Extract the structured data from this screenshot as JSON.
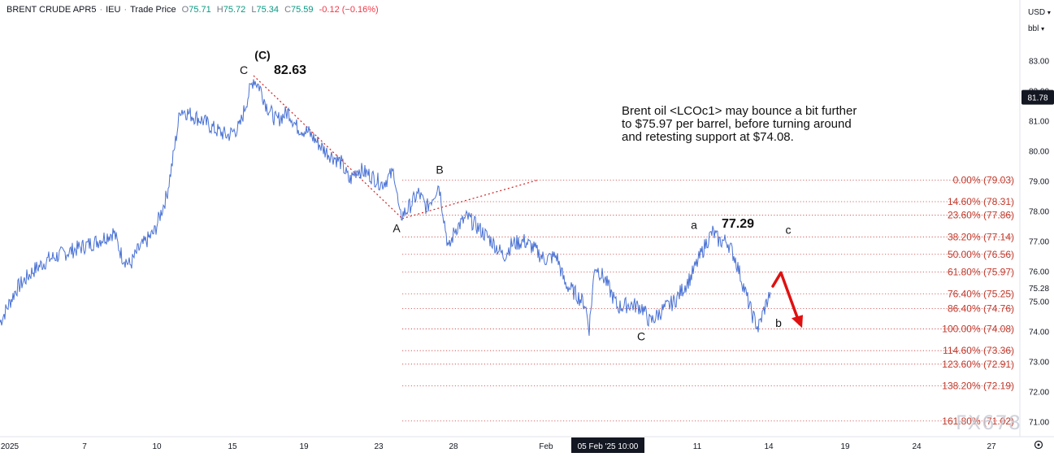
{
  "header": {
    "symbol": "BRENT CRUDE APR5",
    "exchange": "IEU",
    "price_type": "Trade Price",
    "open_label": "O",
    "open": "75.71",
    "high_label": "H",
    "high": "75.72",
    "low_label": "L",
    "low": "75.34",
    "close_label": "C",
    "close": "75.59",
    "change": "-0.12 (−0.16%)"
  },
  "currency": "USD",
  "unit": "bbl",
  "watermark": "FX678",
  "colors": {
    "price_line": "#4a72d4",
    "fib_line": "#c83c3c",
    "fib_text": "#c0392b",
    "arrow": "#e01010",
    "last_price_bg": "#131722",
    "time_highlight_bg": "#131722"
  },
  "chart_data": {
    "type": "line",
    "title": "",
    "xlabel": "",
    "ylabel": "",
    "ylim": [
      70.8,
      84.0
    ],
    "y_ticks": [
      "83.00",
      "82.00",
      "81.00",
      "80.00",
      "79.00",
      "78.00",
      "77.00",
      "76.00",
      "75.00",
      "74.00",
      "73.00",
      "72.00",
      "71.00"
    ],
    "x_ticks": [
      "2025",
      "7",
      "10",
      "15",
      "19",
      "23",
      "28",
      "Feb",
      "05 Feb '25  10:00",
      "11",
      "14",
      "19",
      "24",
      "27"
    ],
    "last_price": "81.78",
    "current_price": "75.28",
    "series": [
      {
        "points": [
          [
            0,
            74.3
          ],
          [
            20,
            75.4
          ],
          [
            40,
            76.0
          ],
          [
            60,
            76.4
          ],
          [
            80,
            76.6
          ],
          [
            100,
            76.8
          ],
          [
            120,
            77.0
          ],
          [
            140,
            77.3
          ],
          [
            150,
            76.5
          ],
          [
            160,
            76.2
          ],
          [
            170,
            76.7
          ],
          [
            190,
            77.3
          ],
          [
            205,
            78.5
          ],
          [
            212,
            79.6
          ],
          [
            222,
            81.4
          ],
          [
            235,
            81.2
          ],
          [
            250,
            81.0
          ],
          [
            265,
            80.7
          ],
          [
            280,
            80.5
          ],
          [
            295,
            80.8
          ],
          [
            305,
            81.8
          ],
          [
            312,
            82.4
          ],
          [
            320,
            82.1
          ],
          [
            328,
            81.5
          ],
          [
            340,
            81.0
          ],
          [
            355,
            81.3
          ],
          [
            365,
            80.8
          ],
          [
            380,
            80.6
          ],
          [
            400,
            80.0
          ],
          [
            420,
            79.6
          ],
          [
            430,
            79.0
          ],
          [
            440,
            79.4
          ],
          [
            455,
            79.2
          ],
          [
            470,
            78.9
          ],
          [
            485,
            79.3
          ],
          [
            492,
            77.8
          ],
          [
            500,
            78.0
          ],
          [
            515,
            78.6
          ],
          [
            525,
            78.1
          ],
          [
            535,
            78.6
          ],
          [
            540,
            78.9
          ],
          [
            545,
            78.0
          ],
          [
            552,
            76.7
          ],
          [
            560,
            77.4
          ],
          [
            575,
            77.8
          ],
          [
            590,
            77.4
          ],
          [
            605,
            77.0
          ],
          [
            620,
            76.5
          ],
          [
            630,
            76.9
          ],
          [
            645,
            77.0
          ],
          [
            655,
            76.8
          ],
          [
            670,
            76.4
          ],
          [
            685,
            76.5
          ],
          [
            695,
            75.6
          ],
          [
            710,
            75.2
          ],
          [
            720,
            74.9
          ],
          [
            725,
            74.1
          ],
          [
            732,
            76.2
          ],
          [
            745,
            75.7
          ],
          [
            760,
            74.8
          ],
          [
            775,
            74.9
          ],
          [
            790,
            74.8
          ],
          [
            800,
            74.3
          ],
          [
            815,
            74.7
          ],
          [
            830,
            75.0
          ],
          [
            840,
            75.4
          ],
          [
            850,
            75.8
          ],
          [
            860,
            76.4
          ],
          [
            870,
            77.0
          ],
          [
            877,
            77.3
          ],
          [
            885,
            77.0
          ],
          [
            895,
            77.0
          ],
          [
            905,
            76.4
          ],
          [
            915,
            75.5
          ],
          [
            925,
            74.6
          ],
          [
            933,
            74.1
          ],
          [
            940,
            74.7
          ],
          [
            948,
            75.3
          ]
        ]
      }
    ],
    "fib_levels": [
      {
        "pct": "0.00%",
        "value": 79.03,
        "label": "0.00% (79.03)"
      },
      {
        "pct": "14.60%",
        "value": 78.31,
        "label": "14.60% (78.31)"
      },
      {
        "pct": "23.60%",
        "value": 77.86,
        "label": "23.60% (77.86)"
      },
      {
        "pct": "38.20%",
        "value": 77.14,
        "label": "38.20% (77.14)"
      },
      {
        "pct": "50.00%",
        "value": 76.56,
        "label": "50.00% (76.56)"
      },
      {
        "pct": "61.80%",
        "value": 75.97,
        "label": "61.80% (75.97)"
      },
      {
        "pct": "76.40%",
        "value": 75.25,
        "label": "76.40% (75.25)"
      },
      {
        "pct": "86.40%",
        "value": 74.76,
        "label": "86.40% (74.76)"
      },
      {
        "pct": "100.00%",
        "value": 74.08,
        "label": "100.00% (74.08)"
      },
      {
        "pct": "114.60%",
        "value": 73.36,
        "label": "114.60% (73.36)"
      },
      {
        "pct": "123.60%",
        "value": 72.91,
        "label": "123.60% (72.91)"
      },
      {
        "pct": "138.20%",
        "value": 72.19,
        "label": "138.20% (72.19)"
      },
      {
        "pct": "161.80%",
        "value": 71.02,
        "label": "161.80% (71.02)"
      }
    ],
    "trend_lines": [
      {
        "from": [
          312,
          82.5
        ],
        "to": [
          495,
          77.75
        ]
      },
      {
        "from": [
          495,
          77.75
        ],
        "to": [
          662,
          79.03
        ]
      }
    ],
    "wave_labels": [
      {
        "text": "(C)",
        "x": 323,
        "y": 83.05
      },
      {
        "text": "C",
        "x": 300,
        "y": 82.55
      },
      {
        "text": "82.63",
        "x": 357,
        "y": 82.55
      },
      {
        "text": "A",
        "x": 488,
        "y": 77.3
      },
      {
        "text": "B",
        "x": 541,
        "y": 79.25
      },
      {
        "text": "a",
        "x": 854,
        "y": 77.4
      },
      {
        "text": "77.29",
        "x": 908,
        "y": 77.45
      },
      {
        "text": "c",
        "x": 970,
        "y": 77.25
      },
      {
        "text": "C",
        "x": 789,
        "y": 73.7
      },
      {
        "text": "b",
        "x": 958,
        "y": 74.15
      }
    ],
    "annotation": "Brent oil <LCOc1> may bounce a bit further to $75.97 per barrel, before turning around and retesting support at $74.08.",
    "annotation_lines": [
      "Brent oil <LCOc1> may bounce a bit further",
      "to $75.97 per barrel, before turning around",
      "and retesting support at $74.08."
    ],
    "forecast_arrow": {
      "path": [
        [
          951,
          75.5
        ],
        [
          961,
          75.95
        ],
        [
          984,
          74.25
        ]
      ]
    }
  }
}
